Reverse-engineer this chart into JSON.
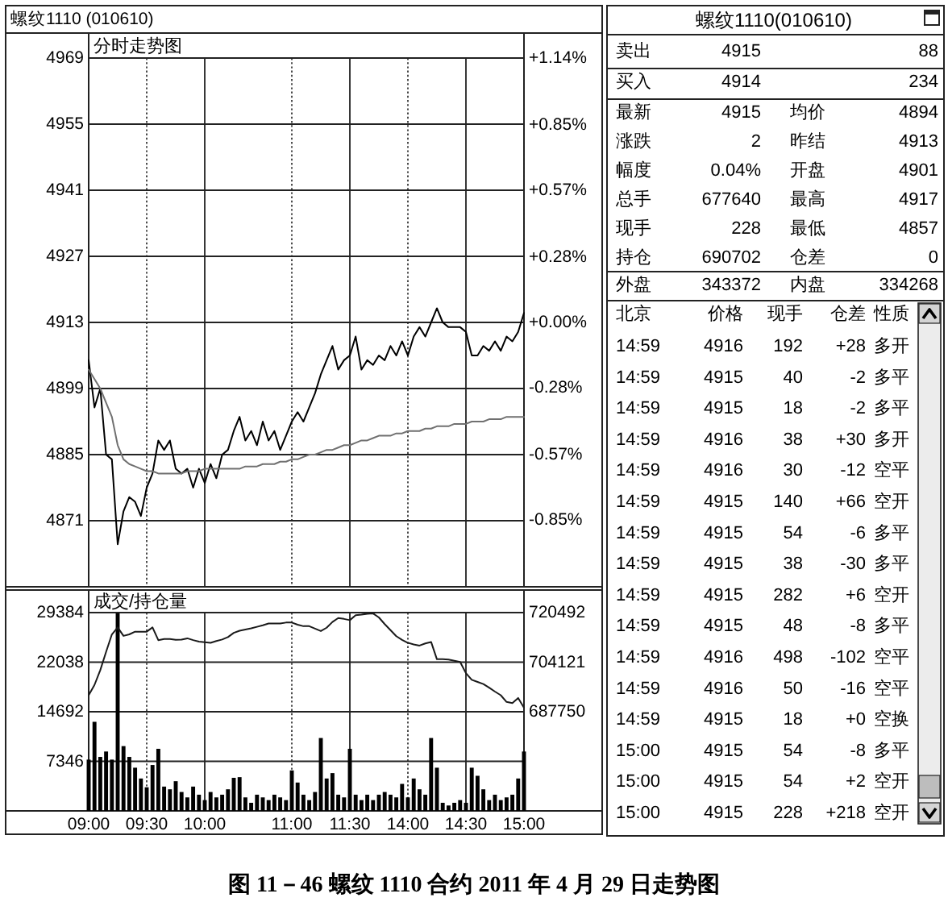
{
  "chart_data": [
    {
      "type": "line",
      "title": "螺纹1110 (010610)",
      "subtitle": "分时走势图",
      "annotations": [
        "图 11－46 螺纹 1110 合约 2011 年 4 月 29 日走势图"
      ],
      "categories": [
        null,
        null,
        null,
        null,
        null,
        null,
        null,
        null,
        null,
        null,
        null,
        null,
        null,
        null,
        null,
        null,
        null,
        null,
        null,
        null,
        null,
        null,
        null,
        null,
        null,
        null,
        null,
        null,
        null,
        null,
        null,
        null,
        null,
        null,
        null,
        null,
        null,
        null,
        null,
        null,
        null,
        null,
        null,
        null,
        null,
        null,
        null,
        null,
        null,
        null,
        null,
        null,
        null,
        null,
        null,
        null,
        null,
        null,
        null,
        null,
        null,
        null,
        null,
        null,
        null,
        null,
        null,
        null,
        null,
        null,
        null,
        null,
        null,
        null,
        null,
        null
      ],
      "tick_labels": "y",
      "ylim": [
        4857,
        4969
      ],
      "yticks": [
        4871,
        4885,
        4899,
        4913,
        4927,
        4941,
        4955,
        4969
      ],
      "y2lim": [
        -1.14,
        1.14
      ],
      "y2ticks": [
        {
          "value": 1.14,
          "label": "+1.14%"
        },
        {
          "value": 0.85,
          "label": "+0.85%"
        },
        {
          "value": 0.57,
          "label": "+0.57%"
        },
        {
          "value": 0.28,
          "label": "+0.28%"
        },
        {
          "value": 0,
          "label": "+0.00%"
        },
        {
          "value": -0.28,
          "label": "-0.28%"
        },
        {
          "value": -0.57,
          "label": "-0.57%"
        },
        {
          "value": -0.85,
          "label": "-0.85%"
        }
      ],
      "grid": true,
      "series": [
        {
          "color": "#000000",
          "values": [
            4905,
            4895,
            4899,
            4885,
            4884,
            4866,
            4873,
            4876,
            4875,
            4872,
            4878,
            4881,
            4888,
            4886,
            4888,
            4882,
            4881,
            4882,
            4878,
            4882,
            4879,
            4883,
            4880,
            4885,
            4886,
            4890,
            4893,
            4888,
            4890,
            4887,
            4892,
            4888,
            4890,
            4886,
            4889,
            4892,
            4894,
            4892,
            4895,
            4898,
            4902,
            4905,
            4908,
            4903,
            4905,
            4906,
            4910,
            4903,
            4905,
            4904,
            4906,
            4905,
            4908,
            4906,
            4909,
            4906,
            4910,
            4912,
            4910,
            4913,
            4916,
            4913,
            4912,
            4912,
            4912,
            4911,
            4906,
            4906,
            4908,
            4907,
            4909,
            4907,
            4910,
            4909,
            4911,
            4915
          ]
        },
        {
          "color": "#707070",
          "values": [
            4903,
            4901,
            4899,
            4896,
            4893,
            4887,
            4884,
            4883,
            4882.5,
            4882,
            4881.5,
            4881.5,
            4881,
            4881,
            4881,
            4881,
            4881,
            4881.5,
            4881.5,
            4881.5,
            4882,
            4882,
            4882,
            4882,
            4882,
            4882,
            4882,
            4882.5,
            4882.5,
            4882.5,
            4883,
            4883,
            4883,
            4883.5,
            4883.5,
            4884,
            4884,
            4884.5,
            4885,
            4885,
            4885.5,
            4886,
            4886,
            4886.5,
            4887,
            4887,
            4887.5,
            4888,
            4888,
            4888.5,
            4889,
            4889,
            4889,
            4889.5,
            4889.5,
            4890,
            4890,
            4890,
            4890.5,
            4890.5,
            4891,
            4891,
            4891,
            4891.5,
            4891.5,
            4891.5,
            4892,
            4892,
            4892,
            4892.5,
            4892.5,
            4892.5,
            4893,
            4893,
            4893,
            4893
          ]
        }
      ]
    },
    {
      "type": "bar",
      "title": "成交/持仓量",
      "categories": [
        "09:00",
        null,
        null,
        null,
        null,
        null,
        null,
        null,
        null,
        null,
        "09:30",
        null,
        null,
        null,
        null,
        null,
        null,
        null,
        null,
        null,
        "10:00",
        null,
        null,
        null,
        null,
        null,
        null,
        null,
        null,
        null,
        null,
        null,
        null,
        null,
        null,
        "11:00",
        null,
        null,
        null,
        null,
        null,
        null,
        null,
        null,
        null,
        "11:30",
        null,
        null,
        null,
        null,
        null,
        null,
        null,
        null,
        null,
        "14:00",
        null,
        null,
        null,
        null,
        null,
        null,
        null,
        null,
        null,
        "14:30",
        null,
        null,
        null,
        null,
        null,
        null,
        null,
        null,
        null,
        "15:00"
      ],
      "ylim": [
        0,
        29384
      ],
      "yticks": [
        7346,
        14692,
        22038,
        29384
      ],
      "y2lim": [
        655008,
        720492
      ],
      "y2ticks": [
        687750,
        704121,
        720492
      ],
      "grid": true,
      "series": [
        {
          "type": "bar",
          "color": "#000000",
          "values": [
            7600,
            13200,
            8000,
            8800,
            7600,
            29300,
            9600,
            8000,
            6400,
            4800,
            3500,
            6800,
            9200,
            3600,
            3200,
            4400,
            2800,
            2000,
            3600,
            2400,
            1600,
            2800,
            2000,
            2400,
            3200,
            4900,
            5000,
            2000,
            1200,
            2400,
            2000,
            1600,
            2400,
            2000,
            1600,
            6000,
            4200,
            2400,
            1600,
            2800,
            10800,
            4800,
            5600,
            2400,
            2000,
            9200,
            2400,
            1600,
            2400,
            1600,
            2400,
            2800,
            2400,
            2000,
            4000,
            2000,
            4800,
            3200,
            2400,
            10800,
            6400,
            1200,
            800,
            1200,
            1600,
            1200,
            6400,
            5200,
            3200,
            1600,
            2400,
            1600,
            2000,
            2400,
            4800,
            8800
          ]
        },
        {
          "type": "line",
          "axis": "y2",
          "color": "#1a1a1a",
          "values": [
            693200,
            696600,
            701500,
            707500,
            713300,
            715600,
            712800,
            713300,
            714200,
            714200,
            714200,
            715600,
            711400,
            711800,
            711800,
            711500,
            711600,
            712000,
            711400,
            710900,
            710700,
            710500,
            711100,
            711600,
            712400,
            713800,
            714500,
            714900,
            715300,
            715800,
            716300,
            716900,
            716900,
            716900,
            717200,
            717200,
            716500,
            716000,
            716000,
            715200,
            714400,
            715500,
            717400,
            718700,
            718400,
            718000,
            719600,
            719800,
            720100,
            720200,
            718900,
            716700,
            714700,
            712700,
            711500,
            710500,
            710000,
            709600,
            710300,
            710800,
            705100,
            705100,
            705000,
            704600,
            704200,
            700500,
            698300,
            697600,
            696900,
            695700,
            694400,
            693200,
            691000,
            690600,
            692300,
            689100
          ]
        }
      ]
    },
    {
      "type": "other",
      "title": "螺纹1110(010610)",
      "annotations": [
        "卖出",
        "4915",
        "88",
        "买入",
        "4914",
        "234",
        "最新",
        "4915",
        "均价",
        "4894",
        "涨跌",
        "2",
        "昨结",
        "4913",
        "幅度",
        "0.04%",
        "开盘",
        "4901",
        "总手",
        "677640",
        "最高",
        "4917",
        "现手",
        "228",
        "最低",
        "4857",
        "持仓",
        "690702",
        "仓差",
        "0",
        "外盘",
        "343372",
        "内盘",
        "334268",
        "北京",
        "价格",
        "现手",
        "仓差",
        "性质",
        "14:59",
        "4916",
        "192",
        "+28",
        "多开",
        "14:59",
        "4915",
        "40",
        "-2",
        "多平",
        "14:59",
        "4915",
        "18",
        "-2",
        "多平",
        "14:59",
        "4916",
        "38",
        "+30",
        "多开",
        "14:59",
        "4916",
        "30",
        "-12",
        "空平",
        "14:59",
        "4915",
        "140",
        "+66",
        "空开",
        "14:59",
        "4915",
        "54",
        "-6",
        "多平",
        "14:59",
        "4915",
        "38",
        "-30",
        "多平",
        "14:59",
        "4915",
        "282",
        "+6",
        "空开",
        "14:59",
        "4915",
        "48",
        "-8",
        "多平",
        "14:59",
        "4916",
        "498",
        "-102",
        "空平",
        "14:59",
        "4916",
        "50",
        "-16",
        "空平",
        "14:59",
        "4915",
        "18",
        "+0",
        "空换",
        "15:00",
        "4915",
        "54",
        "-8",
        "多平",
        "15:00",
        "4915",
        "54",
        "+2",
        "空开",
        "15:00",
        "4915",
        "228",
        "+218",
        "空开"
      ]
    }
  ]
}
